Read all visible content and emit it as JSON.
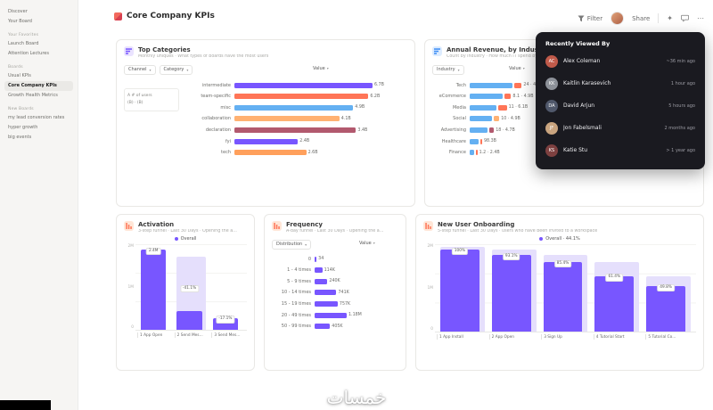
{
  "ui": {
    "caret": "▾"
  },
  "watermark": "خمسات",
  "sidebar": {
    "rows": [
      {
        "t": "item",
        "label": "Discover"
      },
      {
        "t": "item",
        "label": "Your Board"
      },
      {
        "t": "head",
        "label": "Your Favorites"
      },
      {
        "t": "item",
        "label": "Launch Board"
      },
      {
        "t": "item",
        "label": "Attention Lectures"
      },
      {
        "t": "head",
        "label": "Boards"
      },
      {
        "t": "item",
        "label": "Usual KPIs"
      },
      {
        "t": "item",
        "label": "Core Company KPIs",
        "active": true
      },
      {
        "t": "item",
        "label": "Growth Health Metrics"
      },
      {
        "t": "head",
        "label": "New Boards"
      },
      {
        "t": "item",
        "label": "my lead conversion rates"
      },
      {
        "t": "item",
        "label": "hyper growth"
      },
      {
        "t": "item",
        "label": "big events"
      }
    ]
  },
  "header": {
    "title": "Core Company KPIs",
    "filter": "Filter",
    "share": "Share",
    "wand": "✦",
    "more": "⋯"
  },
  "popover": {
    "title": "Recently Viewed By",
    "users": [
      {
        "name": "Alex Coleman",
        "time": "~36 min ago",
        "initials": "AC",
        "color": "#c05a4a"
      },
      {
        "name": "Kaitlin Karasevich",
        "time": "1 hour ago",
        "initials": "KK",
        "color": "#8d9199"
      },
      {
        "name": "David Arjun",
        "time": "5 hours ago",
        "initials": "DA",
        "color": "#50586b"
      },
      {
        "name": "Jon Fabelsmali",
        "time": "2 months ago",
        "initials": "JF",
        "color": "#c9a47f"
      },
      {
        "name": "Katie Stu",
        "time": "> 1 year ago",
        "initials": "KS",
        "color": "#7d4040"
      }
    ]
  },
  "cards": {
    "top_categories": {
      "title": "Top Categories",
      "subtitle": "Monthly uniques · What types of boards have the most users",
      "channel_dropdown": "Channel",
      "category_dropdown": "Category",
      "value_header": "Value",
      "query_lines": [
        "A  # of users",
        "(B) · (B)"
      ],
      "rows": [
        {
          "label": "intermediate",
          "value": "6.7B",
          "pct": 100,
          "color": "#7856ff"
        },
        {
          "label": "team-specific",
          "value": "6.2B",
          "pct": 97,
          "color": "#ff7557"
        },
        {
          "label": "misc",
          "value": "4.9B",
          "pct": 86,
          "color": "#64b0f2"
        },
        {
          "label": "collaboration",
          "value": "4.1B",
          "pct": 76,
          "color": "#ffb172"
        },
        {
          "label": "declaration",
          "value": "3.4B",
          "pct": 88,
          "color": "#b2596e"
        },
        {
          "label": "fyi",
          "value": "2.4B",
          "pct": 46,
          "color": "#7856ff"
        },
        {
          "label": "tech",
          "value": "2.6B",
          "pct": 52,
          "color": "#ffa05c"
        }
      ]
    },
    "annual_revenue": {
      "title": "Annual Revenue, by Industry",
      "subtitle": "Count by industry · How much IT spend by each",
      "industry_dropdown": "Industry",
      "value_header": "Value",
      "rows": [
        {
          "label": "Tech",
          "value": "24 · 4.1B",
          "segments": [
            {
              "pct": 80,
              "color": "#64b0f2"
            },
            {
              "pct": 14,
              "color": "#ff7557"
            }
          ]
        },
        {
          "label": "eCommerce",
          "value": "8.1 · 4.9B",
          "segments": [
            {
              "pct": 62,
              "color": "#64b0f2"
            },
            {
              "pct": 12,
              "color": "#ff7557"
            }
          ]
        },
        {
          "label": "Media",
          "value": "11 · 6.1B",
          "segments": [
            {
              "pct": 50,
              "color": "#64b0f2"
            },
            {
              "pct": 16,
              "color": "#ff7557"
            }
          ]
        },
        {
          "label": "Social",
          "value": "10 · 4.9B",
          "segments": [
            {
              "pct": 42,
              "color": "#64b0f2"
            },
            {
              "pct": 10,
              "color": "#ffb172"
            }
          ]
        },
        {
          "label": "Advertising",
          "value": "18 · 4.7B",
          "segments": [
            {
              "pct": 34,
              "color": "#64b0f2"
            },
            {
              "pct": 8,
              "color": "#b2596e"
            }
          ]
        },
        {
          "label": "Healthcare",
          "value": "98.3B",
          "segments": [
            {
              "pct": 16,
              "color": "#64b0f2"
            },
            {
              "pct": 4,
              "color": "#ff7557"
            }
          ]
        },
        {
          "label": "Finance",
          "value": "1.2 · 2.4B",
          "segments": [
            {
              "pct": 8,
              "color": "#64b0f2"
            },
            {
              "pct": 3,
              "color": "#ff7557"
            }
          ]
        }
      ]
    },
    "activation": {
      "title": "Activation",
      "subtitle": "3-step funnel · Last 30 Days · Opening the a…",
      "legend": "Overall",
      "y_ticks": [
        "2M",
        "1M",
        "0"
      ],
      "steps": [
        {
          "label": "1 App Open",
          "dark": 94,
          "chip": "2.4M"
        },
        {
          "label": "2 Send Mes…",
          "dark": 22,
          "ghost": 86,
          "chip": "-41.1%",
          "chip_pos": 44
        },
        {
          "label": "3 Send Mes…",
          "dark": 14,
          "chip": "-17.1%"
        }
      ]
    },
    "frequency": {
      "title": "Frequency",
      "subtitle": "A-day funnel · Last 30 Days · Opening the a…",
      "distribution_dropdown": "Distribution",
      "value_header": "Value",
      "rows": [
        {
          "label": "0",
          "value": "34",
          "pct": 3,
          "color": "#7856ff"
        },
        {
          "label": "1 - 4 times",
          "value": "114K",
          "pct": 12,
          "color": "#7856ff"
        },
        {
          "label": "5 - 9 times",
          "value": "240K",
          "pct": 20,
          "color": "#7856ff"
        },
        {
          "label": "10 - 14 times",
          "value": "741K",
          "pct": 34,
          "color": "#7856ff"
        },
        {
          "label": "15 - 19 times",
          "value": "757K",
          "pct": 36,
          "color": "#7856ff"
        },
        {
          "label": "20 - 49 times",
          "value": "1.18M",
          "pct": 50,
          "color": "#7856ff"
        },
        {
          "label": "50 - 99 times",
          "value": "405K",
          "pct": 24,
          "color": "#7856ff"
        }
      ]
    },
    "onboarding": {
      "title": "New User Onboarding",
      "subtitle": "5-step funnel · Last 30 Days · users who have been invited to a workspace",
      "legend": "Overall · 44.1%",
      "y_ticks": [
        "2M",
        "1M",
        "0"
      ],
      "steps": [
        {
          "label": "1 App Install",
          "ghost": 97,
          "dark": 94,
          "chip": "100%"
        },
        {
          "label": "2 App Open",
          "ghost": 94,
          "dark": 88,
          "chip": "93.1%"
        },
        {
          "label": "3 Sign Up",
          "ghost": 88,
          "dark": 80,
          "chip": "85.4%"
        },
        {
          "label": "4 Tutorial Start",
          "ghost": 80,
          "dark": 64,
          "chip": "61.4%"
        },
        {
          "label": "5 Tutorial Co…",
          "ghost": 64,
          "dark": 52,
          "chip": "49.8%"
        }
      ]
    }
  }
}
